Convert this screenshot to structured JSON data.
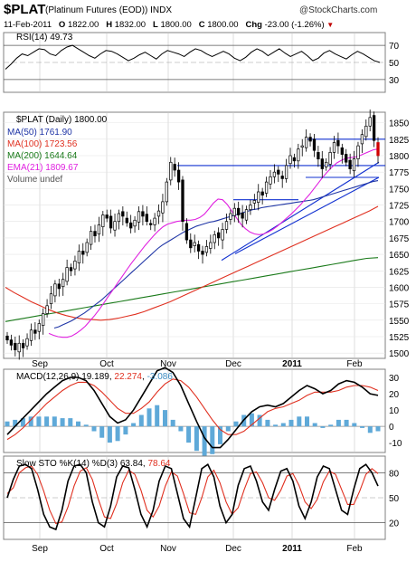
{
  "header": {
    "symbol": "$PLAT",
    "description": "(Platinum Futures (EOD))",
    "exchange": "INDX",
    "credit": "@StockCharts.com",
    "date": "11-Feb-2011",
    "open_label": "O",
    "open": "1822.00",
    "high_label": "H",
    "high": "1832.00",
    "low_label": "L",
    "low": "1800.00",
    "close_label": "C",
    "close": "1800.00",
    "chg_label": "Chg",
    "chg": "-23.00 (-1.26%)"
  },
  "colors": {
    "price": "#000000",
    "ma50": "#1f35a6",
    "ma100": "#e03020",
    "ma200": "#1a7a1a",
    "ema21": "#e020e0",
    "trendline": "#1030d0",
    "macd_hist": "#5fa9d8",
    "stoch_d": "#e03020",
    "grid": "#c8c8c8"
  },
  "chart_data": [
    {
      "type": "line",
      "title": "RSI(14) 49.73",
      "y_ticks": [
        "70",
        "50",
        "30"
      ],
      "reference_lines": [
        70,
        30
      ],
      "ylim": [
        15,
        85
      ],
      "series": [
        {
          "name": "RSI(14)",
          "values": [
            42,
            48,
            55,
            60,
            58,
            62,
            66,
            65,
            60,
            58,
            64,
            68,
            70,
            66,
            62,
            58,
            55,
            60,
            64,
            63,
            60,
            56,
            52,
            55,
            59,
            62,
            58,
            54,
            60,
            64,
            62,
            60,
            57,
            62,
            66,
            64,
            60,
            57,
            60,
            63,
            60,
            55,
            52,
            56,
            62,
            66,
            63,
            58,
            62,
            66,
            61,
            57,
            60,
            63,
            58,
            52,
            55,
            61,
            64,
            60,
            57,
            54,
            59,
            63,
            60,
            56,
            52,
            50
          ]
        }
      ]
    },
    {
      "type": "candlestick",
      "title": "$PLAT (Daily) 1800.00",
      "legend": [
        {
          "name": "MA(50)",
          "value": "1761.90",
          "color": "#1f35a6"
        },
        {
          "name": "MA(100)",
          "value": "1723.56",
          "color": "#e03020"
        },
        {
          "name": "MA(200)",
          "value": "1644.64",
          "color": "#1a7a1a"
        },
        {
          "name": "EMA(21)",
          "value": "1809.67",
          "color": "#e020e0"
        },
        {
          "name": "Volume undef",
          "value": "",
          "color": "#808080"
        }
      ],
      "y_ticks": [
        "1850",
        "1825",
        "1800",
        "1775",
        "1750",
        "1725",
        "1700",
        "1675",
        "1650",
        "1625",
        "1600",
        "1575",
        "1550",
        "1525",
        "1500"
      ],
      "ylim": [
        1492,
        1866
      ],
      "x_labels": [
        "Sep",
        "Oct",
        "Nov",
        "Dec",
        "2011",
        "Feb"
      ],
      "close": [
        1520,
        1512,
        1505,
        1515,
        1508,
        1522,
        1535,
        1530,
        1545,
        1560,
        1572,
        1590,
        1605,
        1598,
        1612,
        1630,
        1625,
        1640,
        1655,
        1650,
        1668,
        1685,
        1678,
        1695,
        1710,
        1705,
        1690,
        1700,
        1712,
        1708,
        1698,
        1690,
        1702,
        1715,
        1708,
        1700,
        1695,
        1705,
        1716,
        1730,
        1760,
        1790,
        1778,
        1760,
        1700,
        1672,
        1660,
        1668,
        1655,
        1650,
        1662,
        1668,
        1680,
        1675,
        1688,
        1700,
        1712,
        1720,
        1710,
        1705,
        1718,
        1725,
        1732,
        1745,
        1740,
        1760,
        1768,
        1775,
        1772,
        1765,
        1785,
        1800,
        1792,
        1810,
        1815,
        1828,
        1822,
        1808,
        1795,
        1780,
        1790,
        1805,
        1820,
        1815,
        1802,
        1790,
        1780,
        1795,
        1815,
        1832,
        1845,
        1858,
        1823,
        1800
      ],
      "ma50": [
        1538,
        1540,
        1543,
        1546,
        1549,
        1553,
        1557,
        1561,
        1566,
        1571,
        1576,
        1581,
        1587,
        1593,
        1599,
        1605,
        1611,
        1617,
        1623,
        1629,
        1635,
        1641,
        1647,
        1653,
        1659,
        1664,
        1668,
        1672,
        1676,
        1680,
        1684,
        1687,
        1690,
        1693,
        1695,
        1697,
        1699,
        1700,
        1702,
        1704,
        1706,
        1708,
        1710,
        1712,
        1714,
        1716,
        1718,
        1719,
        1721,
        1722,
        1723,
        1724,
        1725,
        1726,
        1727,
        1728,
        1729,
        1730,
        1731,
        1732,
        1733,
        1735,
        1737,
        1739,
        1741,
        1743,
        1745,
        1747,
        1749,
        1751,
        1753,
        1755,
        1757,
        1759,
        1761,
        1762
      ],
      "ma100": [
        1600,
        1592,
        1585,
        1578,
        1572,
        1566,
        1561,
        1557,
        1554,
        1552,
        1551,
        1550,
        1551,
        1553,
        1556,
        1559,
        1563,
        1568,
        1573,
        1578,
        1584,
        1590,
        1596,
        1602,
        1608,
        1614,
        1620,
        1626,
        1632,
        1638,
        1644,
        1650,
        1656,
        1662,
        1668,
        1674,
        1680,
        1686,
        1692,
        1698,
        1704,
        1710,
        1716,
        1723
      ],
      "ma200": [
        1548,
        1551,
        1554,
        1557,
        1560,
        1563,
        1566,
        1569,
        1572,
        1575,
        1578,
        1581,
        1584,
        1587,
        1590,
        1593,
        1596,
        1599,
        1602,
        1605,
        1608,
        1611,
        1614,
        1617,
        1620,
        1623,
        1626,
        1629,
        1632,
        1635,
        1638,
        1641,
        1644,
        1645
      ],
      "ema21": [
        1530,
        1527,
        1525,
        1524,
        1524,
        1526,
        1530,
        1535,
        1541,
        1549,
        1557,
        1566,
        1576,
        1586,
        1596,
        1606,
        1616,
        1626,
        1636,
        1645,
        1654,
        1663,
        1671,
        1679,
        1686,
        1692,
        1696,
        1698,
        1700,
        1701,
        1702,
        1702,
        1703,
        1706,
        1711,
        1719,
        1728,
        1734,
        1733,
        1726,
        1716,
        1706,
        1696,
        1689,
        1684,
        1681,
        1680,
        1681,
        1684,
        1688,
        1693,
        1699,
        1705,
        1711,
        1718,
        1725,
        1733,
        1741,
        1750,
        1759,
        1768,
        1776,
        1783,
        1789,
        1793,
        1796,
        1797,
        1798,
        1800,
        1803,
        1806,
        1809,
        1810
      ]
    },
    {
      "type": "line",
      "title": "MACD(12,26,9)",
      "values": [
        "19.189",
        "22.274",
        "-3.086"
      ],
      "y_ticks": [
        "30",
        "20",
        "10",
        "0",
        "-10"
      ],
      "ylim": [
        -16,
        35
      ],
      "series": [
        {
          "name": "MACD(12,26,9)",
          "values": [
            -5,
            0,
            5,
            10,
            15,
            20,
            24,
            28,
            30,
            30,
            28,
            22,
            14,
            6,
            2,
            4,
            10,
            18,
            26,
            34,
            36,
            33,
            25,
            14,
            3,
            -7,
            -13,
            -13,
            -8,
            -2,
            4,
            9,
            12,
            13,
            12,
            14,
            18,
            22,
            25,
            23,
            20,
            22,
            26,
            28,
            27,
            24,
            20,
            19
          ]
        },
        {
          "name": "Signal",
          "values": [
            -8,
            -5,
            -1,
            4,
            9,
            14,
            18,
            22,
            25,
            27,
            27,
            25,
            21,
            16,
            11,
            8,
            8,
            11,
            15,
            21,
            26,
            29,
            28,
            24,
            18,
            11,
            4,
            -2,
            -5,
            -5,
            -3,
            1,
            5,
            9,
            11,
            12,
            14,
            16,
            19,
            21,
            21,
            21,
            22,
            24,
            25,
            25,
            24,
            22
          ]
        }
      ],
      "histogram": [
        3,
        4,
        5,
        6,
        6,
        6,
        6,
        5,
        5,
        3,
        1,
        -3,
        -7,
        -10,
        -9,
        -5,
        2,
        7,
        11,
        13,
        10,
        4,
        -3,
        -10,
        -15,
        -18,
        -17,
        -11,
        -3,
        3,
        7,
        8,
        7,
        4,
        1,
        2,
        4,
        6,
        6,
        2,
        -1,
        1,
        4,
        4,
        2,
        -1,
        -4,
        -3
      ]
    },
    {
      "type": "line",
      "title": "Slow STO %K(14) %D(3)",
      "values": [
        "63.84",
        "78.64"
      ],
      "y_ticks": [
        "80",
        "50",
        "20"
      ],
      "reference_lines": [
        80,
        50,
        20
      ],
      "ylim": [
        0,
        100
      ],
      "series": [
        {
          "name": "%K(14)",
          "values": [
            50,
            72,
            88,
            90,
            85,
            60,
            30,
            15,
            12,
            35,
            70,
            88,
            90,
            80,
            45,
            20,
            15,
            40,
            75,
            88,
            86,
            60,
            30,
            15,
            35,
            70,
            88,
            85,
            55,
            25,
            15,
            50,
            85,
            90,
            75,
            40,
            20,
            30,
            65,
            85,
            88,
            70,
            45,
            35,
            60,
            82,
            85,
            70,
            40,
            25,
            45,
            75,
            88,
            85,
            60,
            35,
            30,
            60,
            85,
            90,
            80,
            64
          ]
        },
        {
          "name": "%D(3)",
          "values": [
            55,
            62,
            80,
            86,
            88,
            78,
            58,
            35,
            19,
            21,
            39,
            64,
            82,
            86,
            72,
            48,
            27,
            25,
            43,
            68,
            83,
            78,
            59,
            35,
            27,
            40,
            64,
            81,
            76,
            55,
            32,
            30,
            50,
            75,
            83,
            68,
            45,
            30,
            38,
            60,
            79,
            81,
            68,
            50,
            47,
            59,
            76,
            79,
            65,
            45,
            37,
            48,
            69,
            82,
            78,
            60,
            42,
            42,
            58,
            78,
            85,
            79
          ]
        }
      ]
    }
  ]
}
